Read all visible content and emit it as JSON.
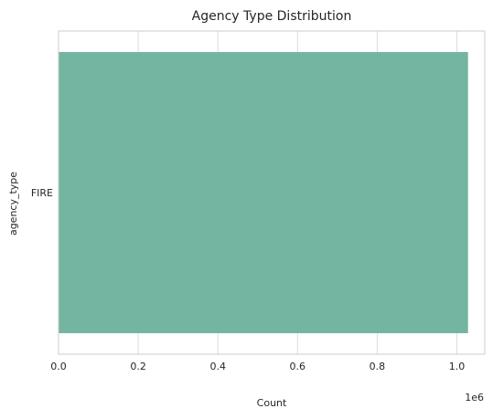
{
  "chart_data": {
    "type": "bar",
    "orientation": "horizontal",
    "title": "Agency Type Distribution",
    "xlabel": "Count",
    "ylabel": "agency_type",
    "categories": [
      "FIRE"
    ],
    "values": [
      1028000
    ],
    "xlim": [
      0,
      1070000
    ],
    "x_ticks": [
      0,
      200000,
      400000,
      600000,
      800000,
      1000000
    ],
    "x_tick_labels": [
      "0.0",
      "0.2",
      "0.4",
      "0.6",
      "0.8",
      "1.0"
    ],
    "x_scale_label": "1e6",
    "grid": true,
    "bar_color": "#74b5a1"
  }
}
